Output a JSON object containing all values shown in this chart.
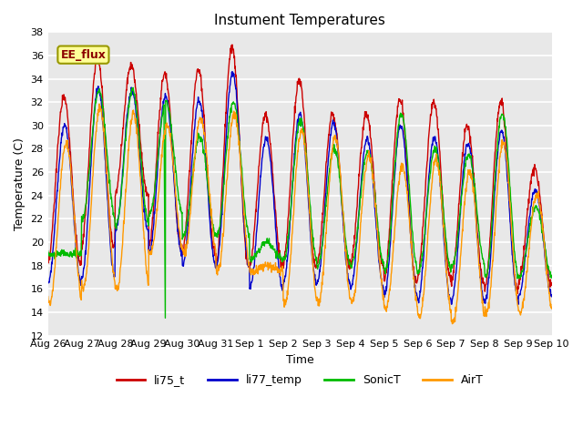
{
  "title": "Instument Temperatures",
  "xlabel": "Time",
  "ylabel": "Temperature (C)",
  "ylim": [
    12,
    38
  ],
  "yticks": [
    12,
    14,
    16,
    18,
    20,
    22,
    24,
    26,
    28,
    30,
    32,
    34,
    36,
    38
  ],
  "fig_bg_color": "#ffffff",
  "plot_bg_color": "#e8e8e8",
  "series": [
    "li75_t",
    "li77_temp",
    "SonicT",
    "AirT"
  ],
  "colors": [
    "#cc0000",
    "#0000cc",
    "#00bb00",
    "#ff9900"
  ],
  "annotation_text": "EE_flux",
  "date_labels": [
    "Aug 26",
    "Aug 27",
    "Aug 28",
    "Aug 29",
    "Aug 30",
    "Aug 31",
    "Sep 1",
    "Sep 2",
    "Sep 3",
    "Sep 4",
    "Sep 5",
    "Sep 6",
    "Sep 7",
    "Sep 8",
    "Sep 9",
    "Sep 10"
  ],
  "n_days": 15,
  "peaks_li75": [
    32.5,
    35.8,
    35.2,
    34.5,
    34.8,
    36.7,
    30.9,
    33.9,
    31.0,
    30.9,
    32.2,
    32.0,
    30.0,
    32.0,
    26.3
  ],
  "peaks_li77": [
    30.0,
    33.2,
    33.0,
    32.5,
    32.2,
    34.5,
    29.0,
    31.0,
    30.2,
    28.8,
    30.0,
    29.0,
    28.5,
    29.5,
    24.5
  ],
  "peaks_sonic": [
    19.0,
    33.0,
    33.0,
    32.0,
    29.0,
    32.0,
    20.0,
    30.5,
    28.0,
    27.8,
    31.0,
    28.0,
    27.5,
    31.0,
    23.0
  ],
  "peaks_air": [
    28.5,
    31.5,
    31.0,
    30.0,
    30.5,
    31.0,
    18.0,
    29.5,
    29.0,
    27.5,
    26.5,
    27.0,
    26.0,
    28.5,
    24.0
  ],
  "troughs_li75": [
    18.0,
    19.5,
    24.0,
    19.5,
    19.0,
    18.0,
    18.0,
    18.0,
    18.0,
    18.0,
    16.5,
    17.0,
    16.5,
    16.0,
    16.5
  ],
  "troughs_li77": [
    16.5,
    17.0,
    21.0,
    19.0,
    18.0,
    18.0,
    16.0,
    16.5,
    16.5,
    16.0,
    15.5,
    15.0,
    15.0,
    15.0,
    15.5
  ],
  "troughs_sonic": [
    19.0,
    22.0,
    21.5,
    22.5,
    20.5,
    20.5,
    18.5,
    18.5,
    18.0,
    18.0,
    17.5,
    17.5,
    18.0,
    17.0,
    17.0
  ],
  "troughs_air": [
    14.8,
    16.0,
    16.0,
    19.0,
    19.0,
    17.5,
    17.5,
    14.8,
    14.8,
    14.8,
    14.3,
    13.5,
    13.2,
    14.0,
    14.0
  ]
}
